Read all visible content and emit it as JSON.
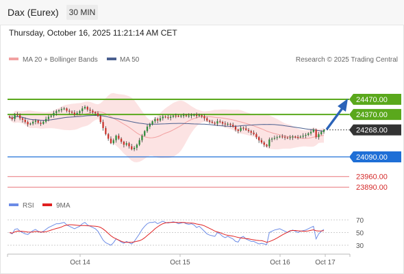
{
  "header": {
    "title": "Dax (Eurex)",
    "timeframe": "30 MIN"
  },
  "datetime": "Thursday, October 16, 2025 11:21:14 AM CET",
  "credit": "Research © 2025 Trading Central",
  "colors": {
    "resistance": "#5aa81c",
    "support": "#1f6fd6",
    "target": "#e8757a",
    "bollinger_fill": "#fbdcdc",
    "ma20": "#f2a1a1",
    "ma50": "#4a5f8f",
    "rsi": "#6b8be6",
    "rsi_ma": "#e02020",
    "arrow": "#2b63b8",
    "bull": "#2e8b3a",
    "bear": "#c8322b"
  },
  "chart_data": {
    "type": "candlestick",
    "legend": [
      "MA 20 + Bollinger Bands",
      "MA 50"
    ],
    "x_ticks": [
      "Oct 14",
      "Oct 15",
      "Oct 16",
      "Oct 17"
    ],
    "levels": [
      {
        "price": 24470.0,
        "label": "24470.00",
        "kind": "resistance"
      },
      {
        "price": 24370.0,
        "label": "24370.00",
        "kind": "resistance"
      },
      {
        "price": 24268.0,
        "label": "24268.00",
        "kind": "last"
      },
      {
        "price": 24090.0,
        "label": "24090.00",
        "kind": "support"
      },
      {
        "price": 23960.0,
        "label": "23960.00",
        "kind": "target"
      },
      {
        "price": 23890.0,
        "label": "23890.00",
        "kind": "target"
      }
    ],
    "close_series": [
      24350,
      24340,
      24370,
      24365,
      24345,
      24335,
      24320,
      24305,
      24310,
      24322,
      24330,
      24315,
      24308,
      24322,
      24340,
      24355,
      24362,
      24380,
      24392,
      24398,
      24405,
      24410,
      24395,
      24388,
      24382,
      24370,
      24380,
      24392,
      24410,
      24420,
      24402,
      24395,
      24385,
      24378,
      24360,
      24320,
      24280,
      24240,
      24210,
      24180,
      24200,
      24230,
      24210,
      24190,
      24170,
      24180,
      24160,
      24140,
      24150,
      24170,
      24200,
      24230,
      24260,
      24290,
      24305,
      24325,
      24340,
      24330,
      24345,
      24356,
      24352,
      24348,
      24355,
      24362,
      24360,
      24358,
      24362,
      24365,
      24360,
      24362,
      24366,
      24368,
      24360,
      24365,
      24358,
      24345,
      24330,
      24322,
      24315,
      24310,
      24325,
      24320,
      24310,
      24305,
      24308,
      24302,
      24290,
      24270,
      24262,
      24282,
      24278,
      24268,
      24260,
      24250,
      24240,
      24220,
      24200,
      24185,
      24170,
      24160,
      24205,
      24210,
      24215,
      24220,
      24225,
      24222,
      24218,
      24215,
      24220,
      24225,
      24222,
      24220,
      24224,
      24230,
      24235,
      24245,
      24255,
      24270,
      24220,
      24240,
      24255,
      24268
    ],
    "rsi": {
      "legend": [
        "RSI",
        "9MA"
      ],
      "levels": [
        70,
        50,
        30
      ],
      "values": [
        50,
        48,
        55,
        56,
        52,
        50,
        48,
        47,
        50,
        53,
        55,
        52,
        50,
        52,
        55,
        58,
        60,
        62,
        64,
        64,
        65,
        66,
        62,
        60,
        58,
        56,
        58,
        60,
        64,
        66,
        62,
        60,
        58,
        56,
        52,
        45,
        38,
        34,
        32,
        30,
        34,
        40,
        38,
        35,
        33,
        36,
        34,
        32,
        36,
        42,
        48,
        55,
        60,
        64,
        66,
        66,
        67,
        64,
        66,
        68,
        66,
        65,
        66,
        67,
        66,
        64,
        65,
        66,
        64,
        63,
        64,
        62,
        58,
        60,
        56,
        52,
        48,
        46,
        45,
        44,
        50,
        48,
        44,
        42,
        44,
        42,
        40,
        36,
        35,
        42,
        44,
        40,
        38,
        36,
        36,
        34,
        32,
        33,
        32,
        31,
        50,
        52,
        54,
        55,
        56,
        54,
        52,
        50,
        52,
        54,
        52,
        50,
        52,
        53,
        54,
        56,
        58,
        60,
        40,
        48,
        52,
        55
      ]
    }
  }
}
